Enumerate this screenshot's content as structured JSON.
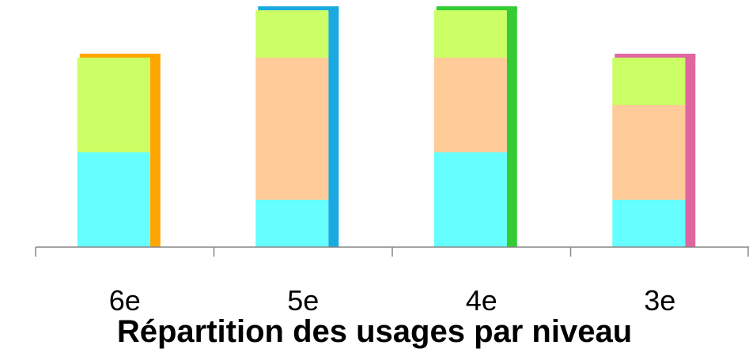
{
  "chart_data": {
    "type": "bar",
    "stacked": true,
    "title": "Répartition des usages par niveau",
    "categories": [
      "6e",
      "5e",
      "4e",
      "3e"
    ],
    "series": [
      {
        "values": [
          2,
          1,
          2,
          1
        ],
        "color": "#66FFFF"
      },
      {
        "values": [
          0,
          3,
          2,
          2
        ],
        "color": "#FFCC99"
      },
      {
        "values": [
          2,
          1,
          1,
          1
        ],
        "color": "#CCFF66"
      }
    ],
    "accent_colors": [
      "#FFA500",
      "#1AAAE0",
      "#33CC33",
      "#E066A0"
    ],
    "ylim": [
      0,
      5
    ],
    "gridlines": false,
    "legend": "none"
  }
}
